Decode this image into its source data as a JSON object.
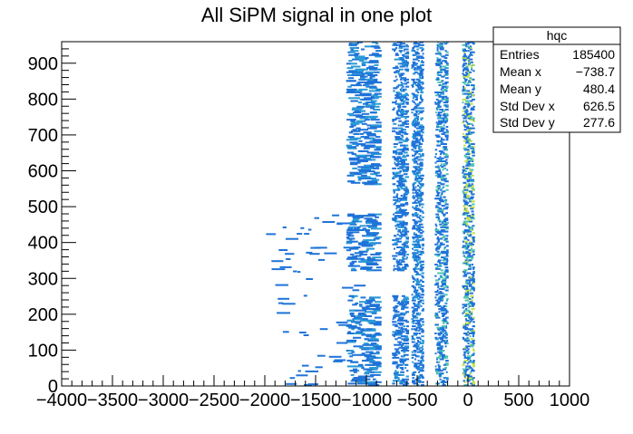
{
  "chart_data": {
    "type": "heatmap",
    "title": "All SiPM signal in one plot",
    "xlabel": "",
    "ylabel": "",
    "xlim": [
      -4000,
      1000
    ],
    "ylim": [
      0,
      960
    ],
    "x_ticks": [
      -4000,
      -3500,
      -3000,
      -2500,
      -2000,
      -1500,
      -1000,
      -500,
      0,
      500,
      1000
    ],
    "y_ticks": [
      0,
      100,
      200,
      300,
      400,
      500,
      600,
      700,
      800,
      900
    ],
    "grid": false,
    "colormap": [
      "#1f73d8",
      "#2b9ad6",
      "#4fc3b0",
      "#bfe04a"
    ],
    "signal_bands": [
      {
        "x_min": -1200,
        "x_max": -850,
        "y_ranges": [
          [
            0,
            250
          ],
          [
            320,
            480
          ],
          [
            560,
            960
          ]
        ]
      },
      {
        "x_min": -750,
        "x_max": -580,
        "y_ranges": [
          [
            0,
            250
          ],
          [
            320,
            960
          ]
        ]
      },
      {
        "x_min": -560,
        "x_max": -430,
        "y_ranges": [
          [
            0,
            960
          ]
        ]
      },
      {
        "x_min": -330,
        "x_max": -190,
        "y_ranges": [
          [
            0,
            960
          ]
        ]
      },
      {
        "x_min": -60,
        "x_max": 70,
        "y_ranges": [
          [
            0,
            960
          ]
        ]
      }
    ],
    "stats_box": {
      "title": "hqc",
      "rows": [
        {
          "label": "Entries",
          "value": "185400"
        },
        {
          "label": "Mean x",
          "value": "−738.7"
        },
        {
          "label": "Mean y",
          "value": "480.4"
        },
        {
          "label": "Std Dev x",
          "value": "626.5"
        },
        {
          "label": "Std Dev y",
          "value": "277.6"
        }
      ]
    }
  }
}
